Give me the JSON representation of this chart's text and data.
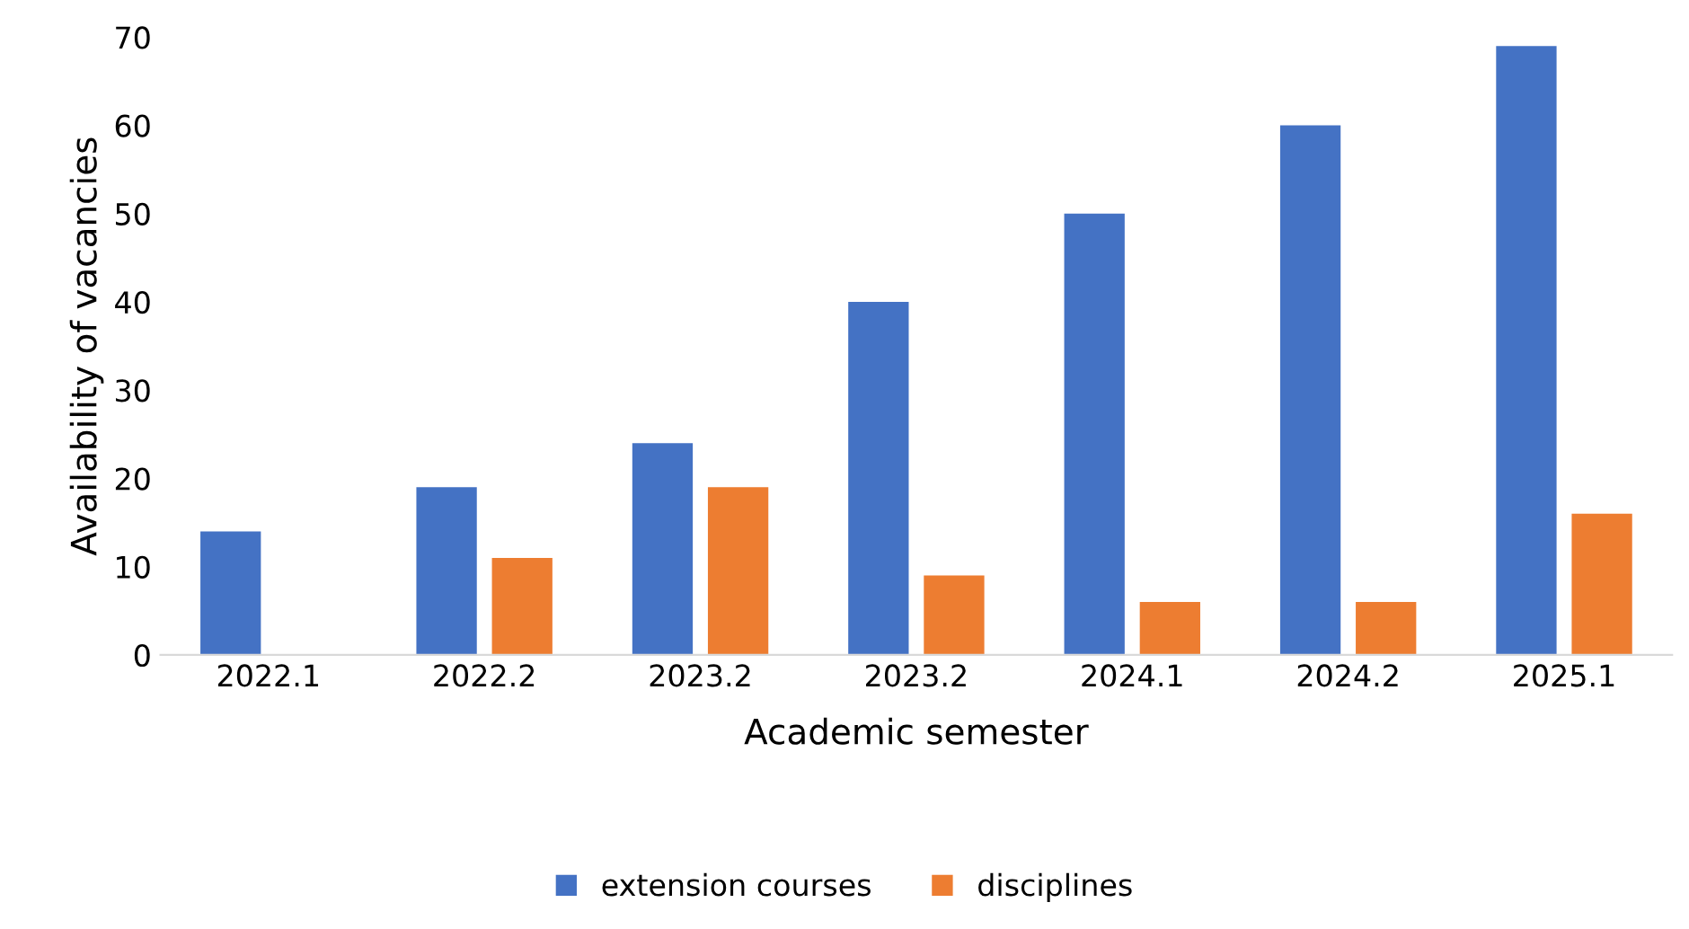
{
  "chart_data": {
    "type": "bar",
    "xlabel": "Academic semester",
    "ylabel": "Availability of vacancies",
    "categories": [
      "2022.1",
      "2022.2",
      "2023.2",
      "2023.2",
      "2024.1",
      "2024.2",
      "2025.1"
    ],
    "series": [
      {
        "name": "extension courses",
        "color": "#4472c4",
        "values": [
          14,
          19,
          24,
          40,
          50,
          60,
          69
        ]
      },
      {
        "name": "disciplines",
        "color": "#ed7d31",
        "values": [
          null,
          11,
          19,
          9,
          6,
          6,
          16
        ]
      }
    ],
    "ylim": [
      0,
      70
    ],
    "yticks": [
      0,
      10,
      20,
      30,
      40,
      50,
      60,
      70
    ],
    "grid": false,
    "legend": "bottom"
  }
}
